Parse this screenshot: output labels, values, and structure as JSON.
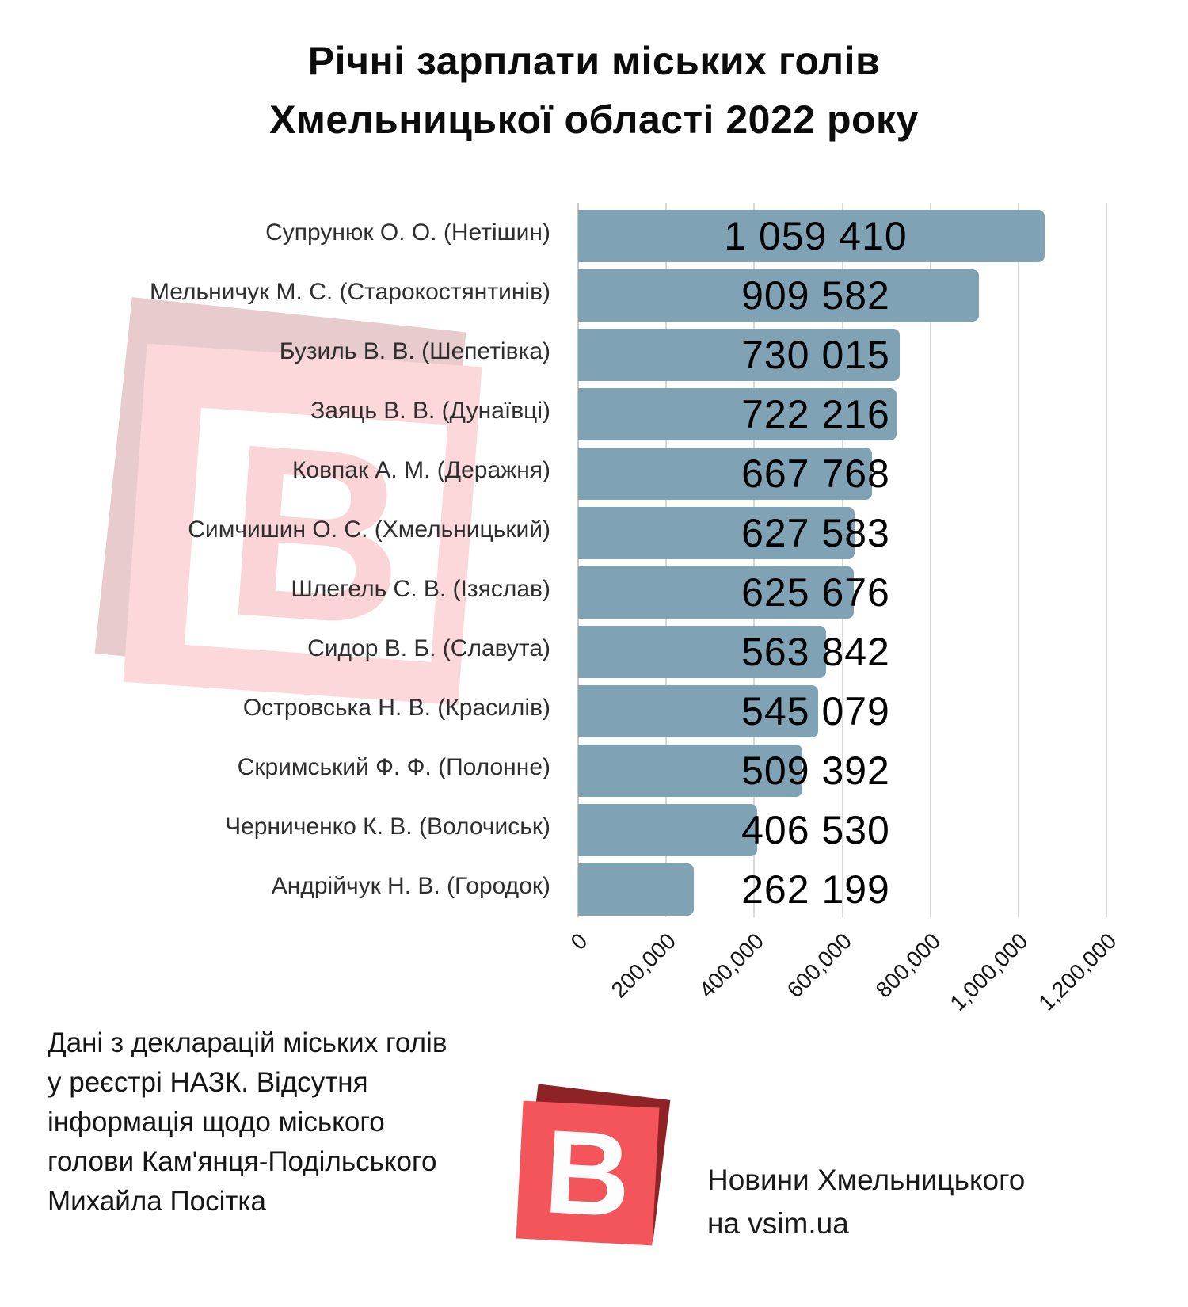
{
  "title": {
    "lines": [
      "Річні зарплати міських голів",
      "Хмельницької області 2022 року"
    ]
  },
  "chart_data": {
    "type": "bar",
    "orientation": "horizontal",
    "title": "Річні зарплати міських голів Хмельницької області 2022 року",
    "categories": [
      "Супрунюк О. О. (Нетішин)",
      "Мельничук М. С. (Старокостянтинів)",
      "Бузиль В. В. (Шепетівка)",
      "Заяць В. В. (Дунаївці)",
      "Ковпак А. М. (Деражня)",
      "Симчишин О. С. (Хмельницький)",
      "Шлегель С. В. (Ізяслав)",
      "Сидор В. Б. (Славута)",
      "Островська Н. В. (Красилів)",
      "Скримський Ф. Ф. (Полонне)",
      "Черниченко К. В. (Волочиськ)",
      "Андрійчук Н. В. (Городок)"
    ],
    "values": [
      1059410,
      909582,
      730015,
      722216,
      667768,
      627583,
      625676,
      563842,
      545079,
      509392,
      406530,
      262199
    ],
    "value_labels": [
      "1 059 410",
      "909 582",
      "730 015",
      "722 216",
      "667 768",
      "627 583",
      "625 676",
      "563 842",
      "545 079",
      "509 392",
      "406 530",
      "262 199"
    ],
    "x_tick_labels": [
      "0",
      "200,000",
      "400,000",
      "600,000",
      "800,000",
      "1,000,000",
      "1,200,000"
    ],
    "x_tick_step": 200000,
    "xlim": [
      0,
      1316000
    ],
    "grid": true,
    "legend": false,
    "bar_color": "#7fa3b5"
  },
  "watermark": {
    "letter": "B"
  },
  "footer": {
    "source_note_lines": [
      "Дані з декларацій міських голів",
      "у реєстрі НАЗК. Відсутня",
      "інформація щодо міського",
      "голови Кам'янця-Подільського",
      "Михайла Посітка"
    ],
    "logo_letter": "B",
    "brand_text_lines": [
      "Новини Хмельницького",
      "на vsim.ua"
    ]
  },
  "colors": {
    "bar": "#7fa3b5",
    "grid": "#d8d8d8",
    "grid_zero": "#c7c7c7",
    "logo_red": "#f3555b",
    "logo_maroon": "#8e2326",
    "watermark_front_pink": "#fcd8da",
    "watermark_back_dusty": "#e7cbcd",
    "watermark_letter_pink": "#fbd4d7"
  }
}
